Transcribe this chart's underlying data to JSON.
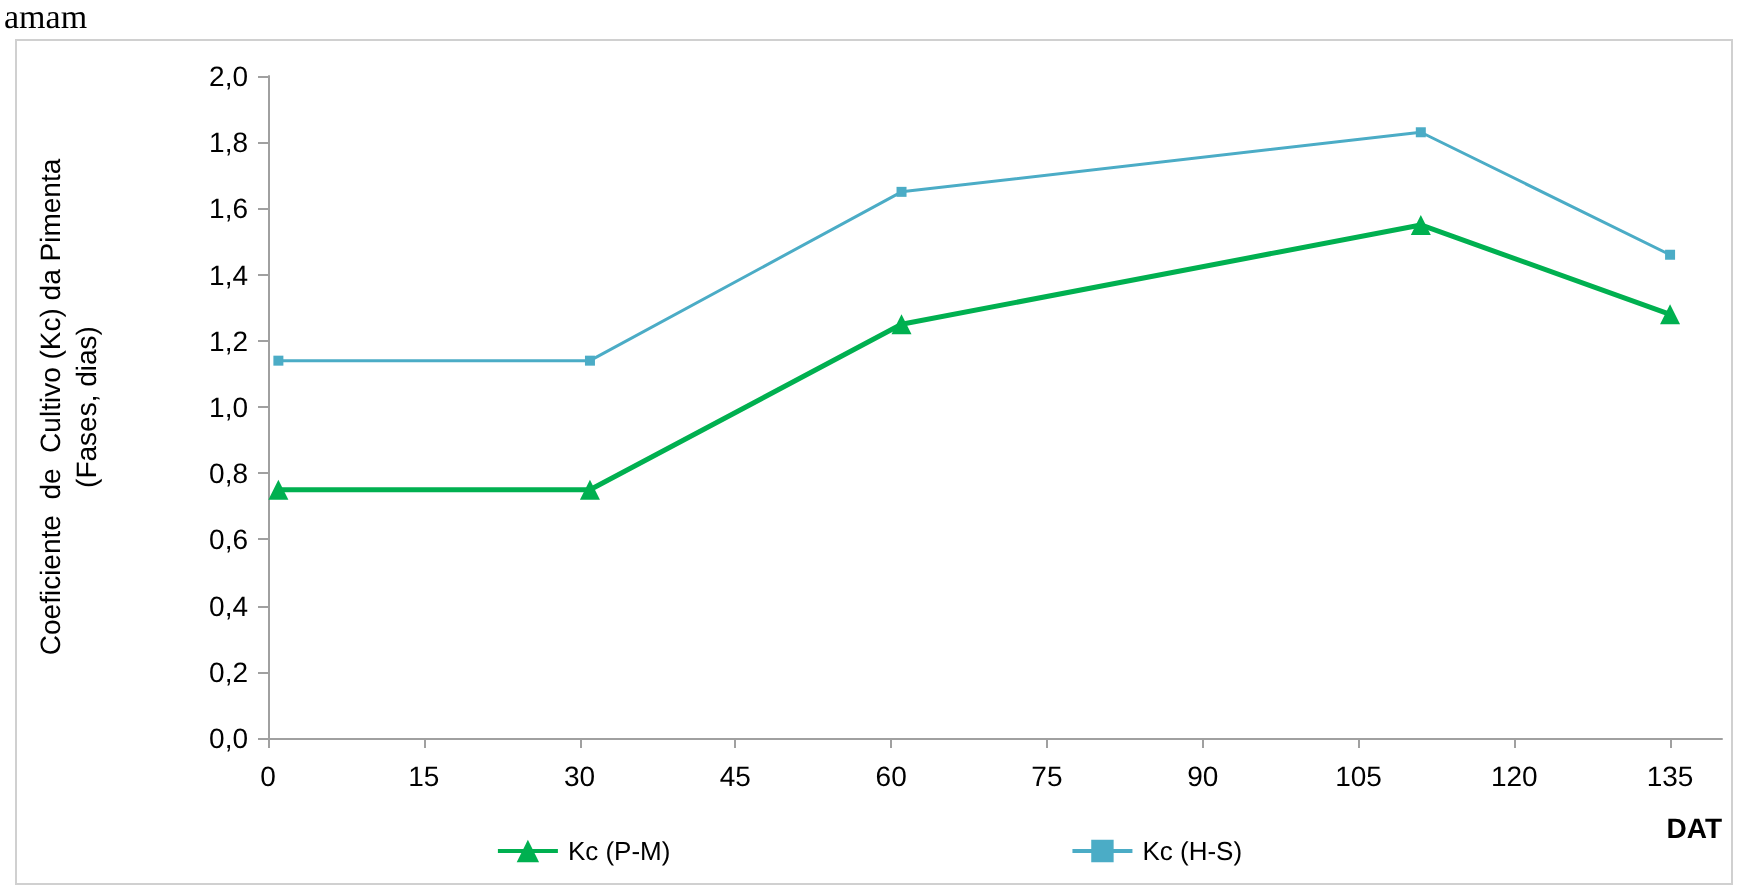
{
  "chart_data": {
    "type": "line",
    "ylabel": "Coeficiente  de  Cultivo (Kc) da Pimenta\n(Fases, dias)",
    "xlabel": "DAT",
    "annotations": [
      "amam"
    ],
    "x": [
      1,
      31,
      61,
      111,
      135
    ],
    "series": [
      {
        "name": "Kc (P-M)",
        "color": "#00b050",
        "marker": "triangle",
        "values": [
          0.75,
          0.75,
          1.25,
          1.55,
          1.28
        ]
      },
      {
        "name": "Kc (H-S)",
        "color": "#4bacc6",
        "marker": "square",
        "values": [
          1.14,
          1.14,
          1.65,
          1.83,
          1.46
        ]
      }
    ],
    "xlim": [
      0,
      140
    ],
    "xticks": [
      0,
      15,
      30,
      45,
      60,
      75,
      90,
      105,
      120,
      135
    ],
    "ylim": [
      0,
      2
    ],
    "yticks": [
      {
        "value": 0,
        "label": "0,0"
      },
      {
        "value": 0.2,
        "label": "0,2"
      },
      {
        "value": 0.4,
        "label": "0,4"
      },
      {
        "value": 0.6,
        "label": "0,6"
      },
      {
        "value": 0.8,
        "label": "0,8"
      },
      {
        "value": 1,
        "label": "1,0"
      },
      {
        "value": 1.2,
        "label": "1,2"
      },
      {
        "value": 1.4,
        "label": "1,4"
      },
      {
        "value": 1.6,
        "label": "1,6"
      },
      {
        "value": 1.8,
        "label": "1,8"
      },
      {
        "value": 2,
        "label": "2,0"
      }
    ],
    "grid": false,
    "legend": "bottom"
  }
}
